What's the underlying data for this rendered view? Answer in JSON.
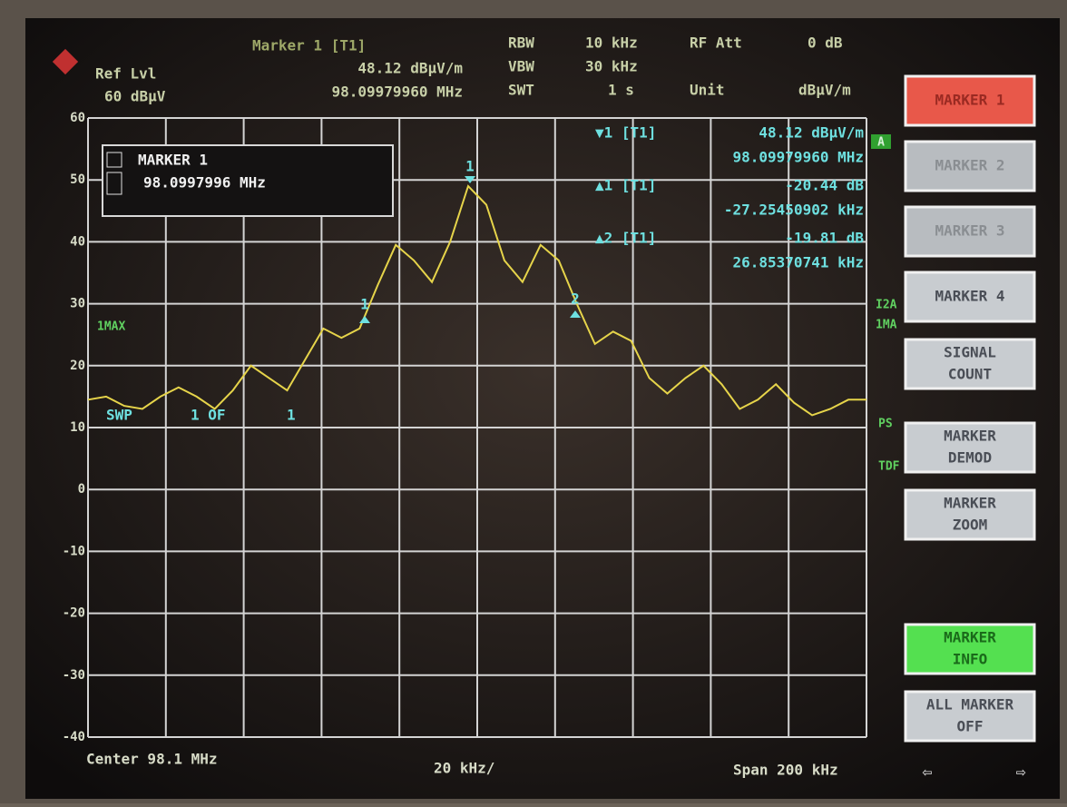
{
  "header": {
    "ref_label": "Ref Lvl",
    "ref_value": "60 dBμV",
    "marker_title": "Marker 1 [T1]",
    "marker_level": "48.12 dBμV/m",
    "marker_freq": "98.09979960 MHz",
    "rbw_label": "RBW",
    "rbw": "10 kHz",
    "vbw_label": "VBW",
    "vbw": "30 kHz",
    "swt_label": "SWT",
    "swt": "1 s",
    "att_label": "RF Att",
    "att": "0 dB",
    "unit_label": "Unit",
    "unit": "dBμV/m"
  },
  "marker_box": {
    "title": "MARKER 1",
    "value": "98.0997996 MHz"
  },
  "marker_table": [
    [
      "▼1 [T1]",
      "48.12 dBμV/m",
      "98.09979960 MHz"
    ],
    [
      "▲1 [T1]",
      "-20.44 dB",
      "-27.25450902 kHz"
    ],
    [
      "▲2 [T1]",
      "-19.81 dB",
      "26.85370741 kHz"
    ]
  ],
  "annotations": {
    "trace": "A",
    "max": "1MAX",
    "swp": "SWP",
    "swp_count": "1 OF",
    "swp_total": "1",
    "i2a": "I2A",
    "ma": "1MA",
    "ps": "PS",
    "tdf": "TDF"
  },
  "plot": {
    "ylim": [
      -40,
      60
    ],
    "yticks": [
      60,
      50,
      40,
      30,
      20,
      10,
      0,
      -10,
      -20,
      -30,
      -40
    ],
    "grid": true,
    "trace_color": "#e6d44a",
    "trace": [
      14.5,
      15,
      13.5,
      13,
      15,
      16.5,
      15,
      13,
      16,
      20,
      18,
      16,
      21,
      26,
      24.5,
      26,
      33,
      39.5,
      37,
      33.5,
      40,
      49,
      46,
      37,
      33.5,
      39.5,
      37,
      30,
      23.5,
      25.5,
      24,
      18,
      15.5,
      18,
      20,
      17,
      13,
      14.5,
      17,
      14,
      12,
      13,
      14.5,
      14.5
    ],
    "marker_labels": [
      "1",
      "1",
      "2"
    ]
  },
  "footer": {
    "center": "Center 98.1 MHz",
    "div": "20 kHz/",
    "span": "Span 200 kHz"
  },
  "softkeys": [
    [
      "MARKER 1"
    ],
    [
      "MARKER 2"
    ],
    [
      "MARKER 3"
    ],
    [
      "MARKER 4"
    ],
    [
      "SIGNAL",
      "COUNT"
    ],
    [
      "MARKER",
      "DEMOD"
    ],
    [
      "MARKER",
      "ZOOM"
    ],
    [
      "MARKER",
      "INFO"
    ],
    [
      "ALL MARKER",
      "OFF"
    ]
  ],
  "nav": [
    "⇦",
    "⇨"
  ]
}
